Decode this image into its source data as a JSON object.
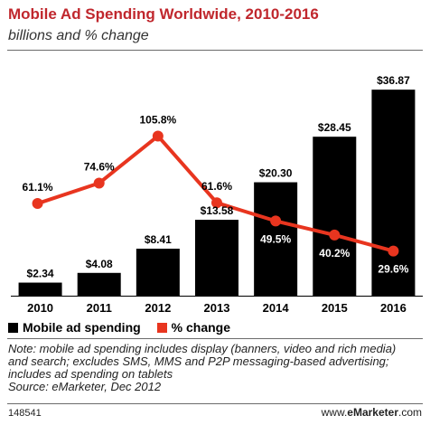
{
  "header": {
    "title": "Mobile Ad Spending Worldwide, 2010-2016",
    "subtitle": "billions and % change"
  },
  "legend": {
    "bar_label": "Mobile ad spending",
    "line_label": "% change"
  },
  "note": {
    "line1": "Note: mobile ad spending includes display (banners, video and rich media)",
    "line2": "and search; excludes SMS, MMS and P2P messaging-based advertising;",
    "line3": "includes ad spending on tablets",
    "line4": "Source: eMarketer, Dec 2012"
  },
  "footer": {
    "id": "148541",
    "site_prefix": "www.",
    "site_brand": "eMarketer",
    "site_suffix": ".com"
  },
  "colors": {
    "title": "#c0272d",
    "bar": "#000000",
    "line": "#e8351f"
  },
  "chart_data": {
    "type": "bar",
    "categories": [
      "2010",
      "2011",
      "2012",
      "2013",
      "2014",
      "2015",
      "2016"
    ],
    "series": [
      {
        "name": "Mobile ad spending",
        "type": "bar",
        "values": [
          2.34,
          4.08,
          8.41,
          13.58,
          20.3,
          28.45,
          36.87
        ],
        "labels": [
          "$2.34",
          "$4.08",
          "$8.41",
          "$13.58",
          "$20.30",
          "$28.45",
          "$36.87"
        ]
      },
      {
        "name": "% change",
        "type": "line",
        "values": [
          61.1,
          74.6,
          105.8,
          61.6,
          49.5,
          40.2,
          29.6
        ],
        "labels": [
          "61.1%",
          "74.6%",
          "105.8%",
          "61.6%",
          "49.5%",
          "40.2%",
          "29.6%"
        ]
      }
    ],
    "bar_ylim": [
      0,
      39
    ],
    "line_ylim": [
      0,
      160
    ],
    "grid": false,
    "legend_position": "bottom-left"
  }
}
